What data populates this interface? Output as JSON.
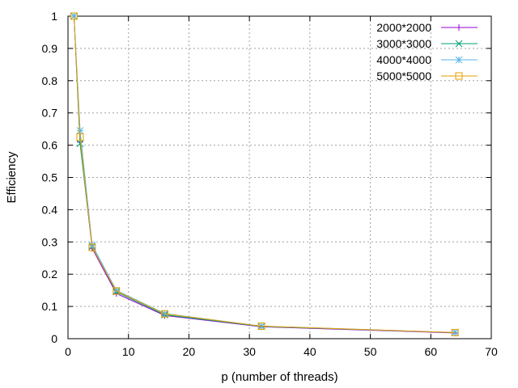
{
  "chart_data": {
    "type": "line",
    "title": "",
    "xlabel": "p (number of threads)",
    "ylabel": "Efficiency",
    "xlim": [
      0,
      70
    ],
    "ylim": [
      0,
      1
    ],
    "x_ticks": [
      0,
      10,
      20,
      30,
      40,
      50,
      60,
      70
    ],
    "y_ticks": [
      0,
      0.1,
      0.2,
      0.3,
      0.4,
      0.5,
      0.6,
      0.7,
      0.8,
      0.9,
      1
    ],
    "x_tick_labels": [
      "0",
      "10",
      "20",
      "30",
      "40",
      "50",
      "60",
      "70"
    ],
    "y_tick_labels": [
      "0",
      "0.1",
      "0.2",
      "0.3",
      "0.4",
      "0.5",
      "0.6",
      "0.7",
      "0.8",
      "0.9",
      "1"
    ],
    "grid": true,
    "legend_position": "top-right",
    "x": [
      1,
      2,
      4,
      8,
      16,
      32,
      64
    ],
    "series": [
      {
        "name": "2000*2000",
        "values": [
          1.0,
          0.61,
          0.28,
          0.14,
          0.072,
          0.037,
          0.018
        ],
        "color": "#9400d3",
        "marker": "plus"
      },
      {
        "name": "3000*3000",
        "values": [
          1.0,
          0.605,
          0.285,
          0.145,
          0.074,
          0.038,
          0.019
        ],
        "color": "#009e73",
        "marker": "cross"
      },
      {
        "name": "4000*4000",
        "values": [
          1.0,
          0.645,
          0.29,
          0.15,
          0.078,
          0.039,
          0.019
        ],
        "color": "#56b4e9",
        "marker": "star"
      },
      {
        "name": "5000*5000",
        "values": [
          1.0,
          0.625,
          0.283,
          0.148,
          0.077,
          0.039,
          0.019
        ],
        "color": "#e69f00",
        "marker": "box"
      }
    ]
  }
}
